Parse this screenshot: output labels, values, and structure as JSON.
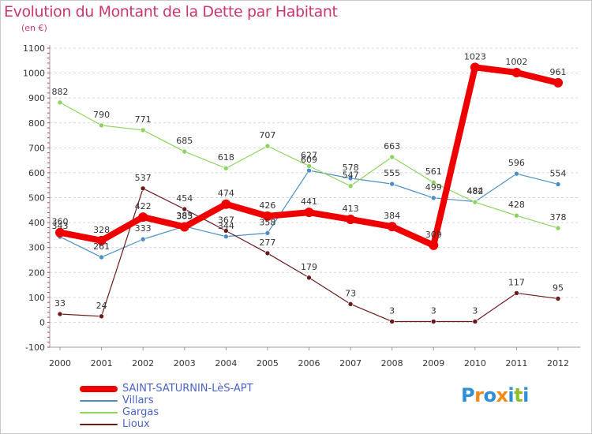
{
  "chart_data": {
    "type": "line",
    "title": "Evolution du Montant de la Dette par Habitant",
    "subtitle": "(en €)",
    "categories": [
      "2000",
      "2001",
      "2002",
      "2003",
      "2004",
      "2005",
      "2006",
      "2007",
      "2008",
      "2009",
      "2010",
      "2011",
      "2012"
    ],
    "ylim": [
      -100,
      1100
    ],
    "yticks": [
      -100,
      0,
      100,
      200,
      300,
      400,
      500,
      600,
      700,
      800,
      900,
      1000,
      1100
    ],
    "grid": "horizontal dashed",
    "legend_position": "bottom-left",
    "series": [
      {
        "name": "SAINT-SATURNIN-LèS-APT",
        "color": "#ee0000",
        "values": [
          360,
          328,
          422,
          383,
          474,
          426,
          441,
          413,
          384,
          309,
          1023,
          1002,
          961
        ]
      },
      {
        "name": "Villars",
        "color": "#4d8fc4",
        "values": [
          343,
          261,
          333,
          385,
          344,
          358,
          609,
          578,
          555,
          499,
          484,
          596,
          554
        ]
      },
      {
        "name": "Gargas",
        "color": "#8cd45f",
        "values": [
          882,
          790,
          771,
          685,
          618,
          707,
          627,
          547,
          663,
          561,
          482,
          428,
          378
        ]
      },
      {
        "name": "Lioux",
        "color": "#6b1a1a",
        "values": [
          33,
          24,
          537,
          454,
          367,
          277,
          179,
          73,
          3,
          3,
          3,
          117,
          95
        ]
      }
    ]
  },
  "branding": {
    "logo_text": "Proxiti",
    "logo_colors": [
      "#2f8ed8",
      "#f28a1a",
      "#2f8ed8",
      "#f28a1a",
      "#2f8ed8",
      "#8cbf2a",
      "#2f8ed8"
    ]
  }
}
